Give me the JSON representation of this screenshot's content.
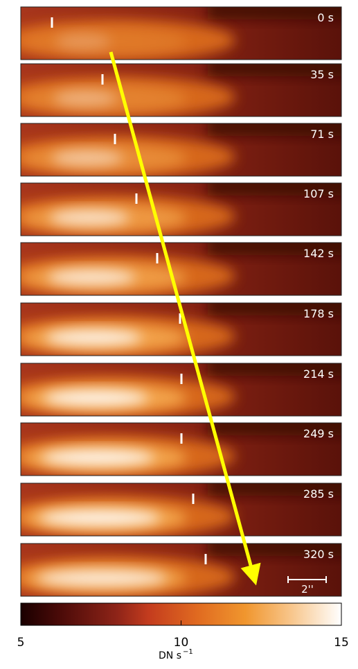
{
  "panels": [
    {
      "label": "0 s"
    },
    {
      "label": "35 s"
    },
    {
      "label": "71 s"
    },
    {
      "label": "107 s"
    },
    {
      "label": "142 s"
    },
    {
      "label": "178 s"
    },
    {
      "label": "214 s"
    },
    {
      "label": "249 s"
    },
    {
      "label": "285 s"
    },
    {
      "label": "320 s"
    }
  ],
  "scale_bar": "2''",
  "colorbar": {
    "xlim": [
      5,
      15
    ],
    "xticks": [
      5,
      10,
      15
    ],
    "label": "DN s",
    "label_exponent": "−1"
  }
}
